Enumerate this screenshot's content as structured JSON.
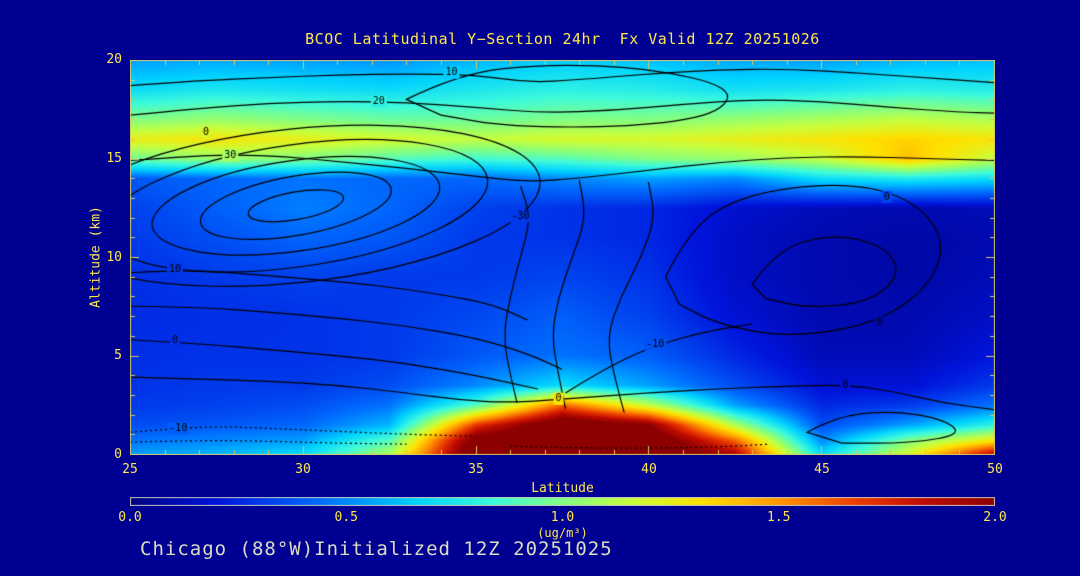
{
  "title": "BCOC Latitudinal Y−Section 24hr  Fx Valid 12Z 20251026",
  "caption": "Chicago (88°W)Initialized 12Z 20251025",
  "colors": {
    "background": "#000093",
    "text_yellow": "#FFE84A",
    "caption_color": "#DCDCC2",
    "axis": "#D9C75E",
    "contour": "#000000"
  },
  "axes": {
    "x_label": "Latitude",
    "y_label": "Altitude (km)",
    "x_ticks": [
      25,
      30,
      35,
      40,
      45,
      50
    ],
    "y_ticks": [
      0,
      5,
      10,
      15,
      20
    ],
    "x_minor_step": 1,
    "y_minor_step": 1
  },
  "colorbar": {
    "ticks": [
      "0.0",
      "0.5",
      "1.0",
      "1.5",
      "2.0"
    ],
    "units": "(ug/m³)",
    "range": [
      0,
      2
    ]
  },
  "chart_data": {
    "type": "heatmap",
    "title": "BCOC Latitudinal Y−Section 24hr  Fx Valid 12Z 20251026",
    "xlabel": "Latitude",
    "ylabel": "Altitude (km)",
    "x_range": [
      25,
      50
    ],
    "y_range": [
      0,
      20
    ],
    "value_range": [
      0,
      2
    ],
    "value_units": "ug/m³",
    "lats": [
      25,
      27.5,
      30,
      32.5,
      35,
      37.5,
      40,
      42.5,
      45,
      47.5,
      50
    ],
    "alts": [
      0,
      0.7,
      1.5,
      2.5,
      3.5,
      5,
      7,
      9,
      11,
      12.5,
      14,
      15,
      16,
      17,
      18.5,
      20
    ],
    "values": [
      [
        0.55,
        0.6,
        0.7,
        1.1,
        2.2,
        2.3,
        2.2,
        1.9,
        0.7,
        1.2,
        1.9
      ],
      [
        0.45,
        0.5,
        0.55,
        0.9,
        2.1,
        2.3,
        2.2,
        1.6,
        0.5,
        1.0,
        1.3
      ],
      [
        0.35,
        0.38,
        0.42,
        0.6,
        1.7,
        2.2,
        2.0,
        1.1,
        0.35,
        0.55,
        0.8
      ],
      [
        0.3,
        0.32,
        0.35,
        0.45,
        0.9,
        1.6,
        1.15,
        0.55,
        0.25,
        0.3,
        0.45
      ],
      [
        0.28,
        0.3,
        0.3,
        0.35,
        0.5,
        0.7,
        0.55,
        0.35,
        0.18,
        0.18,
        0.3
      ],
      [
        0.27,
        0.28,
        0.28,
        0.3,
        0.38,
        0.45,
        0.4,
        0.25,
        0.12,
        0.12,
        0.2
      ],
      [
        0.26,
        0.27,
        0.28,
        0.3,
        0.34,
        0.4,
        0.32,
        0.18,
        0.1,
        0.1,
        0.15
      ],
      [
        0.27,
        0.3,
        0.32,
        0.3,
        0.3,
        0.33,
        0.28,
        0.15,
        0.1,
        0.08,
        0.12
      ],
      [
        0.3,
        0.36,
        0.42,
        0.38,
        0.3,
        0.28,
        0.25,
        0.15,
        0.1,
        0.08,
        0.1
      ],
      [
        0.32,
        0.4,
        0.48,
        0.42,
        0.32,
        0.28,
        0.25,
        0.17,
        0.12,
        0.1,
        0.12
      ],
      [
        0.38,
        0.42,
        0.45,
        0.42,
        0.42,
        0.5,
        0.55,
        0.5,
        0.7,
        0.75,
        0.7
      ],
      [
        0.95,
        1.05,
        1.0,
        0.9,
        0.85,
        0.9,
        1.0,
        1.05,
        1.15,
        1.4,
        1.15
      ],
      [
        1.25,
        1.3,
        1.25,
        1.2,
        1.15,
        1.2,
        1.2,
        1.25,
        1.3,
        1.35,
        1.3
      ],
      [
        1.0,
        1.05,
        1.0,
        0.95,
        0.95,
        1.0,
        1.0,
        1.05,
        1.1,
        1.15,
        1.1
      ],
      [
        0.7,
        0.75,
        0.72,
        0.7,
        0.75,
        0.8,
        0.78,
        0.72,
        0.75,
        0.8,
        0.78
      ],
      [
        0.55,
        0.57,
        0.55,
        0.52,
        0.6,
        0.65,
        0.62,
        0.57,
        0.55,
        0.6,
        0.62
      ]
    ],
    "colormap_stops": [
      [
        0.0,
        [
          0,
          0,
          130
        ]
      ],
      [
        0.1,
        [
          0,
          20,
          220
        ]
      ],
      [
        0.22,
        [
          0,
          110,
          255
        ]
      ],
      [
        0.33,
        [
          0,
          210,
          255
        ]
      ],
      [
        0.42,
        [
          60,
          250,
          220
        ]
      ],
      [
        0.5,
        [
          130,
          255,
          130
        ]
      ],
      [
        0.58,
        [
          200,
          255,
          60
        ]
      ],
      [
        0.66,
        [
          255,
          225,
          0
        ]
      ],
      [
        0.75,
        [
          255,
          150,
          0
        ]
      ],
      [
        0.84,
        [
          235,
          60,
          0
        ]
      ],
      [
        0.92,
        [
          190,
          10,
          0
        ]
      ],
      [
        1.0,
        [
          140,
          0,
          0
        ]
      ]
    ],
    "contours": [
      {
        "labels": [
          [
            "10",
            34.3,
            19.35
          ]
        ],
        "points": [
          [
            25,
            18.7
          ],
          [
            27,
            18.95
          ],
          [
            29,
            19.1
          ],
          [
            31,
            19.25
          ],
          [
            33,
            19.3
          ],
          [
            35,
            19.25
          ],
          [
            36.5,
            18.85
          ],
          [
            38,
            19.0
          ],
          [
            40,
            19.3
          ],
          [
            42,
            19.5
          ],
          [
            44,
            19.55
          ],
          [
            46,
            19.35
          ],
          [
            48,
            19.1
          ],
          [
            50,
            18.85
          ]
        ]
      },
      {
        "labels": [
          [
            "20",
            32.2,
            17.9
          ]
        ],
        "points": [
          [
            25,
            17.2
          ],
          [
            27,
            17.55
          ],
          [
            29,
            17.8
          ],
          [
            31,
            17.9
          ],
          [
            33,
            17.85
          ],
          [
            35,
            17.6
          ],
          [
            37,
            17.3
          ],
          [
            39,
            17.45
          ],
          [
            41,
            17.75
          ],
          [
            43,
            18.0
          ],
          [
            45,
            17.9
          ],
          [
            47,
            17.6
          ],
          [
            49,
            17.35
          ],
          [
            50,
            17.3
          ]
        ]
      },
      {
        "labels": [
          [
            "30",
            27.9,
            15.15
          ]
        ],
        "points": [
          [
            25,
            14.9
          ],
          [
            26.5,
            15.1
          ],
          [
            28,
            15.2
          ],
          [
            29.5,
            15.1
          ],
          [
            31,
            14.85
          ],
          [
            33,
            14.5
          ],
          [
            35,
            14.1
          ],
          [
            36.5,
            13.8
          ],
          [
            38,
            14.0
          ],
          [
            40,
            14.4
          ],
          [
            42,
            14.8
          ],
          [
            44,
            15.05
          ],
          [
            46,
            15.1
          ],
          [
            48,
            15.0
          ],
          [
            50,
            14.9
          ]
        ]
      },
      {
        "closed": true,
        "points": [
          [
            33,
            18
          ],
          [
            34.5,
            19.3
          ],
          [
            37,
            19.8
          ],
          [
            40,
            19.6
          ],
          [
            42.5,
            18.6
          ],
          [
            42,
            17.2
          ],
          [
            39.5,
            16.6
          ],
          [
            36,
            16.6
          ],
          [
            34,
            17.2
          ]
        ]
      },
      {
        "ellipse": [
          29.8,
          12.6,
          1.4,
          0.7,
          -10
        ]
      },
      {
        "ellipse": [
          29.8,
          12.6,
          2.8,
          1.5,
          -10
        ]
      },
      {
        "ellipse": [
          29.8,
          12.6,
          4.2,
          2.3,
          -8
        ]
      },
      {
        "ellipse": [
          29.8,
          12.6,
          5.6,
          3.1,
          -8
        ]
      },
      {
        "ellipse": [
          29.8,
          12.6,
          7.1,
          3.9,
          -6
        ],
        "labels": [
          [
            "0",
            27.2,
            16.3
          ]
        ]
      },
      {
        "labels": [
          [
            "10",
            26.3,
            9.35
          ]
        ],
        "points": [
          [
            25,
            9.2
          ],
          [
            26.5,
            9.35
          ],
          [
            28,
            9.2
          ],
          [
            30,
            8.9
          ],
          [
            32,
            8.6
          ],
          [
            34,
            8.1
          ],
          [
            35.5,
            7.6
          ],
          [
            36.5,
            6.8
          ]
        ]
      },
      {
        "points": [
          [
            25,
            7.5
          ],
          [
            27,
            7.45
          ],
          [
            29,
            7.2
          ],
          [
            31,
            6.9
          ],
          [
            33,
            6.5
          ],
          [
            35,
            5.9
          ],
          [
            36.5,
            5.1
          ],
          [
            37.5,
            4.3
          ]
        ]
      },
      {
        "labels": [
          [
            "0",
            26.3,
            5.75
          ]
        ],
        "points": [
          [
            25,
            5.8
          ],
          [
            27,
            5.6
          ],
          [
            29,
            5.3
          ],
          [
            31,
            5.0
          ],
          [
            33,
            4.6
          ],
          [
            35,
            4.0
          ],
          [
            36.8,
            3.3
          ]
        ]
      },
      {
        "labels": [
          [
            "-30",
            36.3,
            12.05
          ]
        ],
        "points": [
          [
            36.2,
            2.6
          ],
          [
            36.0,
            4
          ],
          [
            35.8,
            6
          ],
          [
            36.0,
            8
          ],
          [
            36.3,
            10
          ],
          [
            36.6,
            12
          ],
          [
            36.3,
            13.6
          ]
        ]
      },
      {
        "points": [
          [
            37.6,
            2.3
          ],
          [
            37.4,
            4
          ],
          [
            37.2,
            6
          ],
          [
            37.4,
            8
          ],
          [
            37.8,
            10
          ],
          [
            38.2,
            12
          ],
          [
            38.0,
            13.9
          ]
        ]
      },
      {
        "points": [
          [
            39.3,
            2.1
          ],
          [
            39.0,
            4
          ],
          [
            38.8,
            6
          ],
          [
            39.2,
            8
          ],
          [
            39.8,
            10
          ],
          [
            40.2,
            12
          ],
          [
            40.0,
            13.8
          ]
        ]
      },
      {
        "closed": true,
        "labels": [
          [
            "0",
            46.9,
            13.05
          ],
          [
            "0",
            46.7,
            6.7
          ]
        ],
        "points": [
          [
            40.5,
            9
          ],
          [
            41.2,
            11.5
          ],
          [
            42.8,
            13.2
          ],
          [
            45.5,
            13.8
          ],
          [
            47.5,
            13.1
          ],
          [
            48.6,
            11
          ],
          [
            48.2,
            8.6
          ],
          [
            46.6,
            6.6
          ],
          [
            44,
            5.9
          ],
          [
            42,
            6.6
          ],
          [
            40.9,
            7.6
          ]
        ]
      },
      {
        "closed": true,
        "points": [
          [
            43,
            8.6
          ],
          [
            43.7,
            10.4
          ],
          [
            45.4,
            11.2
          ],
          [
            46.9,
            10.5
          ],
          [
            47.3,
            9.1
          ],
          [
            46.4,
            7.7
          ],
          [
            44.6,
            7.4
          ],
          [
            43.4,
            7.9
          ]
        ]
      },
      {
        "labels": [
          [
            "-10",
            40.2,
            5.55
          ]
        ],
        "points": [
          [
            37.6,
            3.1
          ],
          [
            38.6,
            4.2
          ],
          [
            40,
            5.4
          ],
          [
            41.6,
            6.2
          ],
          [
            43,
            6.6
          ]
        ]
      },
      {
        "labels": [
          [
            "0",
            37.4,
            2.8
          ],
          [
            "0",
            45.7,
            3.5
          ]
        ],
        "points": [
          [
            25,
            3.9
          ],
          [
            27,
            3.8
          ],
          [
            29,
            3.7
          ],
          [
            31,
            3.5
          ],
          [
            33,
            3.1
          ],
          [
            34.5,
            2.75
          ],
          [
            36,
            2.6
          ],
          [
            38,
            2.85
          ],
          [
            40,
            3.1
          ],
          [
            42,
            3.3
          ],
          [
            44,
            3.45
          ],
          [
            45.8,
            3.5
          ],
          [
            47,
            3.2
          ],
          [
            48.5,
            2.6
          ],
          [
            50,
            2.25
          ]
        ]
      },
      {
        "dash": [
          2,
          3
        ],
        "labels": [
          [
            "-10",
            26.4,
            1.3
          ]
        ],
        "points": [
          [
            25,
            1.1
          ],
          [
            26,
            1.25
          ],
          [
            27.5,
            1.4
          ],
          [
            29,
            1.3
          ],
          [
            31,
            1.15
          ],
          [
            33,
            1.0
          ],
          [
            35,
            0.9
          ]
        ]
      },
      {
        "dash": [
          2,
          3
        ],
        "points": [
          [
            25,
            0.6
          ],
          [
            27,
            0.7
          ],
          [
            29,
            0.65
          ],
          [
            31,
            0.55
          ],
          [
            33,
            0.5
          ]
        ]
      },
      {
        "dash": [
          2,
          3
        ],
        "points": [
          [
            36,
            0.4
          ],
          [
            38,
            0.3
          ],
          [
            40,
            0.3
          ],
          [
            42,
            0.35
          ],
          [
            43.5,
            0.5
          ]
        ]
      },
      {
        "closed": true,
        "points": [
          [
            44.6,
            1.1
          ],
          [
            45.4,
            1.9
          ],
          [
            47,
            2.2
          ],
          [
            48.5,
            1.8
          ],
          [
            49.1,
            1.0
          ],
          [
            47.6,
            0.55
          ],
          [
            45.6,
            0.55
          ]
        ]
      }
    ]
  }
}
